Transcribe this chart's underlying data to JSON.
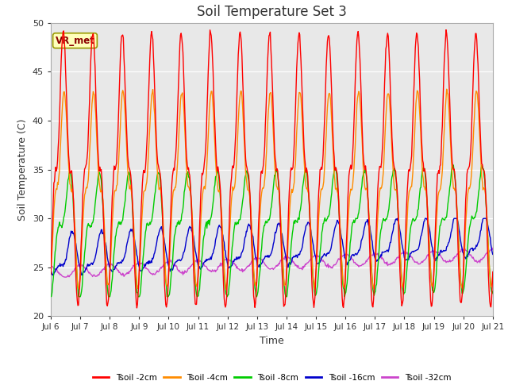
{
  "title": "Soil Temperature Set 3",
  "xlabel": "Time",
  "ylabel": "Soil Temperature (C)",
  "ylim": [
    20,
    50
  ],
  "yticks": [
    20,
    25,
    30,
    35,
    40,
    45,
    50
  ],
  "xtick_labels": [
    "Jul 6",
    "Jul 7",
    "Jul 8",
    "Jul 9",
    "Jul 10",
    "Jul 11",
    "Jul 12",
    "Jul 13",
    "Jul 14",
    "Jul 15",
    "Jul 16",
    "Jul 17",
    "Jul 18",
    "Jul 19",
    "Jul 20",
    "Jul 21"
  ],
  "series_colors": [
    "#ff0000",
    "#ff8c00",
    "#00cc00",
    "#0000cc",
    "#cc44cc"
  ],
  "series_labels": [
    "Tsoil -2cm",
    "Tsoil -4cm",
    "Tsoil -8cm",
    "Tsoil -16cm",
    "Tsoil -32cm"
  ],
  "annotation_text": "VR_met",
  "plot_bg_color": "#e8e8e8",
  "fig_bg_color": "#ffffff",
  "title_fontsize": 12,
  "n_days": 15,
  "n_pts_per_day": 48
}
